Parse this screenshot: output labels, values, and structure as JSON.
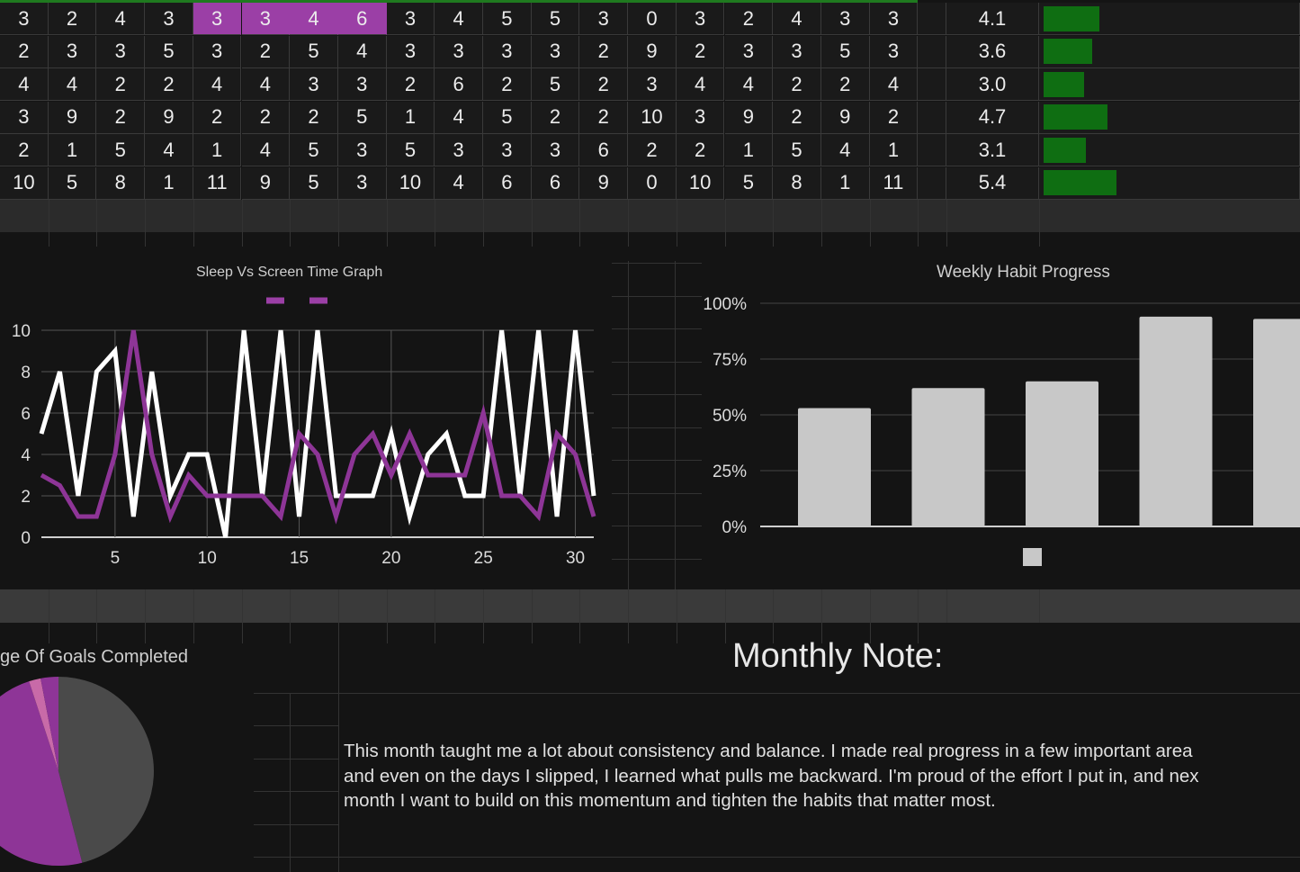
{
  "colors": {
    "accent_purple": "#9b3fa6",
    "green_bar": "#0f6e12",
    "bar_gray": "#c8c8c8",
    "pie_gray": "#4a4a4a",
    "pie_pink": "#c86aa8"
  },
  "table": {
    "highlight_row": 0,
    "highlight_cols": [
      4,
      5,
      6,
      7
    ],
    "rows": [
      {
        "cells": [
          3,
          2,
          4,
          3,
          3,
          3,
          4,
          6,
          3,
          4,
          5,
          5,
          3,
          0,
          3,
          2,
          4,
          3,
          3
        ],
        "average": "4.1",
        "bar_value": 4.1
      },
      {
        "cells": [
          2,
          3,
          3,
          5,
          3,
          2,
          5,
          4,
          3,
          3,
          3,
          3,
          2,
          9,
          2,
          3,
          3,
          5,
          3
        ],
        "average": "3.6",
        "bar_value": 3.6
      },
      {
        "cells": [
          4,
          4,
          2,
          2,
          4,
          4,
          3,
          3,
          2,
          6,
          2,
          5,
          2,
          3,
          4,
          4,
          2,
          2,
          4
        ],
        "average": "3.0",
        "bar_value": 3.0
      },
      {
        "cells": [
          3,
          9,
          2,
          9,
          2,
          2,
          2,
          5,
          1,
          4,
          5,
          2,
          2,
          10,
          3,
          9,
          2,
          9,
          2
        ],
        "average": "4.7",
        "bar_value": 4.7
      },
      {
        "cells": [
          2,
          1,
          5,
          4,
          1,
          4,
          5,
          3,
          5,
          3,
          3,
          3,
          6,
          2,
          2,
          1,
          5,
          4,
          1
        ],
        "average": "3.1",
        "bar_value": 3.1
      },
      {
        "cells": [
          10,
          5,
          8,
          1,
          11,
          9,
          5,
          3,
          10,
          4,
          6,
          6,
          9,
          0,
          10,
          5,
          8,
          1,
          11
        ],
        "average": "5.4",
        "bar_value": 5.4
      }
    ]
  },
  "chart_data": [
    {
      "type": "line",
      "title": "Sleep Vs Screen Time Graph",
      "xlim": [
        1,
        31
      ],
      "ylim": [
        0,
        10
      ],
      "x_ticks": [
        5,
        10,
        15,
        20,
        25,
        30
      ],
      "y_ticks": [
        0,
        2,
        4,
        6,
        8,
        10
      ],
      "grid": true,
      "legend": "top",
      "x": [
        1,
        2,
        3,
        4,
        5,
        6,
        7,
        8,
        9,
        10,
        11,
        12,
        13,
        14,
        15,
        16,
        17,
        18,
        19,
        20,
        21,
        22,
        23,
        24,
        25,
        26,
        27,
        28,
        29,
        30,
        31
      ],
      "series": [
        {
          "color": "#ffffff",
          "values": [
            5,
            8,
            2,
            8,
            9,
            1,
            8,
            2,
            4,
            4,
            0,
            10,
            2,
            10,
            1,
            10,
            2,
            2,
            2,
            5,
            1,
            4,
            5,
            2,
            2,
            10,
            2,
            10,
            1,
            10,
            2
          ]
        },
        {
          "color": "#8e3597",
          "values": [
            3,
            2.5,
            1,
            1,
            4,
            10,
            4,
            1,
            3,
            2,
            2,
            2,
            2,
            1,
            5,
            4,
            1,
            4,
            5,
            3,
            5,
            3,
            3,
            3,
            6,
            2,
            2,
            1,
            5,
            4,
            1
          ]
        }
      ]
    },
    {
      "type": "bar",
      "title": "Weekly Habit Progress",
      "ylim": [
        0,
        100
      ],
      "y_ticks": [
        "0%",
        "25%",
        "50%",
        "75%",
        "100%"
      ],
      "values": [
        53,
        62,
        65,
        94,
        93
      ],
      "legend": "bottom",
      "color": "#c8c8c8"
    },
    {
      "type": "pie",
      "title": "ge Of Goals Completed",
      "values": [
        46,
        49,
        2,
        3
      ],
      "colors": [
        "#4a4a4a",
        "#8e3597",
        "#c86aa8",
        "#8e3597"
      ]
    }
  ],
  "note": {
    "heading": "Monthly Note:",
    "lines": [
      "This month taught me a lot about consistency and balance. I made real progress in a few important area",
      "and even on the days I slipped, I learned what pulls me backward. I'm proud of the effort I put in, and nex",
      "month I want to build on this momentum and tighten the habits that matter most."
    ]
  }
}
